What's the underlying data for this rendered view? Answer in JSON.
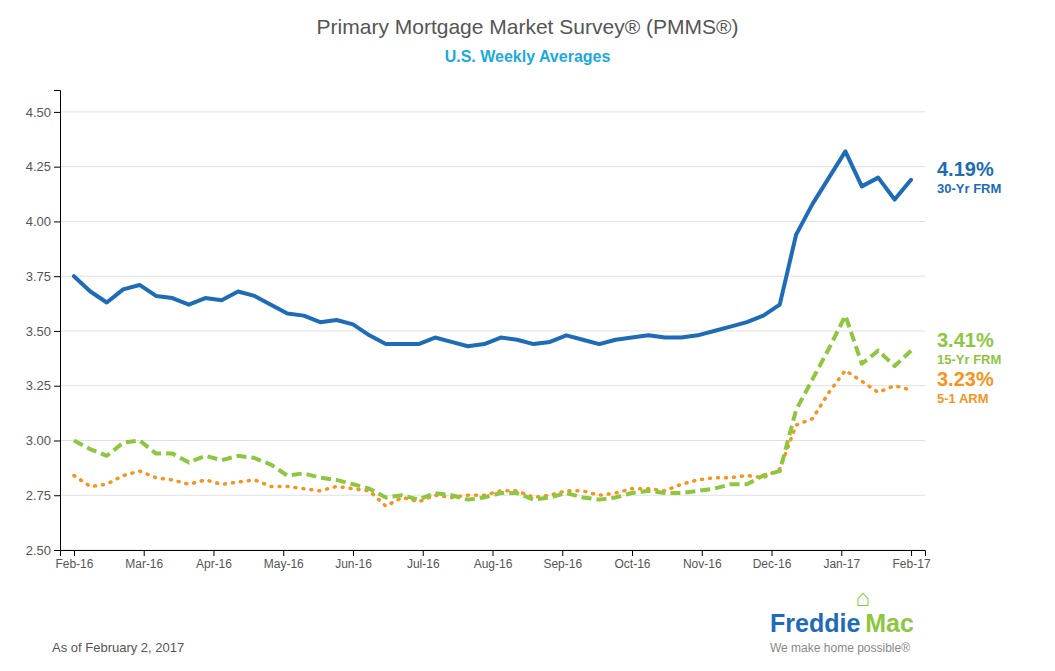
{
  "chart_data": {
    "type": "line",
    "title": "Primary Mortgage Market Survey® (PMMS®)",
    "title_color": "#555555",
    "subtitle": "U.S. Weekly Averages",
    "subtitle_color": "#1da8e0",
    "footer": "As of February 2, 2017",
    "background_color": "#ffffff",
    "grid": "y",
    "xlim": [
      -0.2,
      12.2
    ],
    "xticks": [
      {
        "value": 0,
        "label": "Feb-16"
      },
      {
        "value": 1,
        "label": "Mar-16"
      },
      {
        "value": 2,
        "label": "Apr-16"
      },
      {
        "value": 3,
        "label": "May-16"
      },
      {
        "value": 4,
        "label": "Jun-16"
      },
      {
        "value": 5,
        "label": "Jul-16"
      },
      {
        "value": 6,
        "label": "Aug-16"
      },
      {
        "value": 7,
        "label": "Sep-16"
      },
      {
        "value": 8,
        "label": "Oct-16"
      },
      {
        "value": 9,
        "label": "Nov-16"
      },
      {
        "value": 10,
        "label": "Dec-16"
      },
      {
        "value": 11,
        "label": "Jan-17"
      },
      {
        "value": 12,
        "label": "Feb-17"
      }
    ],
    "ylim": [
      2.5,
      4.6
    ],
    "yticks": [
      {
        "value": 2.5,
        "label": "2.50"
      },
      {
        "value": 2.75,
        "label": "2.75"
      },
      {
        "value": 3,
        "label": "3.00"
      },
      {
        "value": 3.25,
        "label": "3.25"
      },
      {
        "value": 3.5,
        "label": "3.50"
      },
      {
        "value": 3.75,
        "label": "3.75"
      },
      {
        "value": 4,
        "label": "4.00"
      },
      {
        "value": 4.25,
        "label": "4.25"
      },
      {
        "value": 4.5,
        "label": "4.50"
      }
    ],
    "series": [
      {
        "name": "30-Yr FRM",
        "label": "4.19%",
        "color": "#1e6bb8",
        "line_style": "solid",
        "values": [
          3.75,
          3.68,
          3.63,
          3.69,
          3.71,
          3.66,
          3.65,
          3.62,
          3.65,
          3.64,
          3.68,
          3.66,
          3.62,
          3.58,
          3.57,
          3.54,
          3.55,
          3.53,
          3.48,
          3.44,
          3.44,
          3.44,
          3.47,
          3.45,
          3.43,
          3.44,
          3.47,
          3.46,
          3.44,
          3.45,
          3.48,
          3.46,
          3.44,
          3.46,
          3.47,
          3.48,
          3.47,
          3.47,
          3.48,
          3.5,
          3.52,
          3.54,
          3.57,
          3.62,
          3.94,
          4.08,
          4.2,
          4.32,
          4.16,
          4.2,
          4.1,
          4.19
        ]
      },
      {
        "name": "15-Yr FRM",
        "label": "3.41%",
        "color": "#8dc63f",
        "line_style": "dashed",
        "values": [
          3.0,
          2.96,
          2.93,
          2.99,
          3.0,
          2.94,
          2.94,
          2.9,
          2.93,
          2.91,
          2.93,
          2.92,
          2.89,
          2.84,
          2.85,
          2.83,
          2.82,
          2.8,
          2.78,
          2.74,
          2.75,
          2.73,
          2.76,
          2.75,
          2.73,
          2.74,
          2.76,
          2.76,
          2.73,
          2.74,
          2.76,
          2.74,
          2.73,
          2.74,
          2.76,
          2.77,
          2.76,
          2.76,
          2.77,
          2.78,
          2.8,
          2.8,
          2.84,
          2.86,
          3.14,
          3.28,
          3.42,
          3.57,
          3.35,
          3.41,
          3.34,
          3.41
        ]
      },
      {
        "name": "5-1 ARM",
        "label": "3.23%",
        "color": "#f7941d",
        "line_style": "dotted",
        "values": [
          2.84,
          2.79,
          2.8,
          2.84,
          2.86,
          2.83,
          2.82,
          2.8,
          2.82,
          2.8,
          2.81,
          2.82,
          2.79,
          2.79,
          2.78,
          2.77,
          2.79,
          2.78,
          2.77,
          2.7,
          2.74,
          2.72,
          2.75,
          2.74,
          2.75,
          2.75,
          2.77,
          2.77,
          2.74,
          2.75,
          2.77,
          2.77,
          2.75,
          2.76,
          2.78,
          2.78,
          2.77,
          2.8,
          2.82,
          2.83,
          2.83,
          2.84,
          2.83,
          2.87,
          3.07,
          3.1,
          3.22,
          3.32,
          3.27,
          3.22,
          3.25,
          3.23
        ]
      }
    ],
    "logo": {
      "parts": [
        {
          "text": "Freddie",
          "color": "#1e6bb8"
        },
        {
          "text": "Mac",
          "color": "#8dc63f"
        }
      ],
      "icon": "⌂",
      "icon_color": "#8dc63f",
      "tagline": "We make home possible®",
      "tagline_color": "#888888"
    }
  }
}
